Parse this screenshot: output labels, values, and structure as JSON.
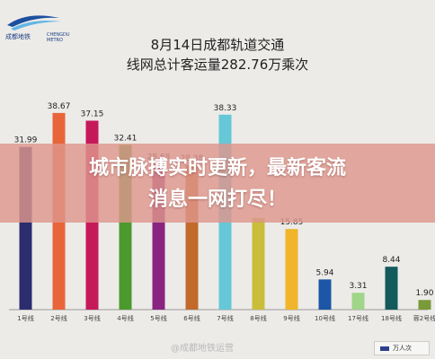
{
  "brand": {
    "name": "成都地铁",
    "name_en": "CHENGDU METRO"
  },
  "chart_data": {
    "type": "bar",
    "title": "8月14日成都轨道交通",
    "subtitle": "线网总计客运量282.76万乘次",
    "categories": [
      "1号线",
      "2号线",
      "3号线",
      "4号线",
      "5号线",
      "6号线",
      "7号线",
      "8号线",
      "9号线",
      "10号线",
      "17号线",
      "18号线",
      "蓉2号线"
    ],
    "values": [
      31.99,
      38.67,
      37.15,
      32.41,
      28.68,
      28.38,
      38.33,
      18.02,
      15.85,
      5.94,
      3.31,
      8.44,
      1.9
    ],
    "value_labels": [
      "31.99",
      "38.67",
      "37.15",
      "32.41",
      "28.68",
      "28.38",
      "38.33",
      "",
      "15.85",
      "5.94",
      "3.31",
      "8.44",
      "1.90"
    ],
    "colors": [
      "#2b2d6e",
      "#e8653a",
      "#c6195a",
      "#4b9a2e",
      "#8a2480",
      "#c26a2b",
      "#66c7d6",
      "#c9bd3a",
      "#f0b52a",
      "#1c56a6",
      "#a0d58a",
      "#135a5c",
      "#7a9a3a"
    ],
    "ylim": [
      0,
      45
    ],
    "legend": {
      "label": "万人次",
      "color": "#2d3f8f",
      "position": "bottom-right"
    },
    "grid": false
  },
  "banner": {
    "line1": "城市脉搏实时更新，最新客流",
    "line2": "消息一网打尽！"
  },
  "watermark": "@成都地铁运营"
}
